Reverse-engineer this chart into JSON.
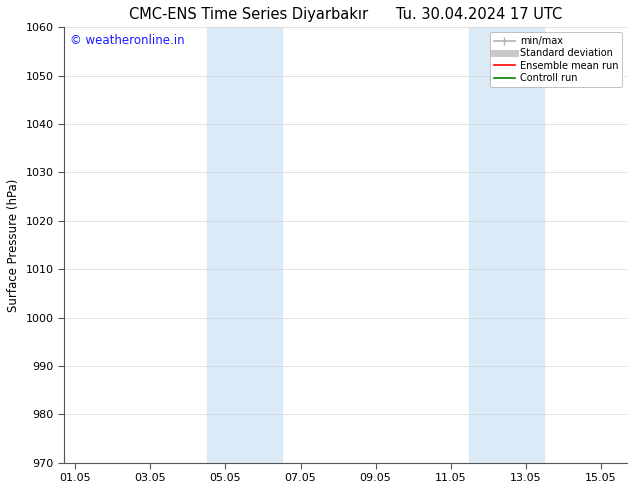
{
  "title": "CMC-ENS Time Series Diyarbakır",
  "title_right": "Tu. 30.04.2024 17 UTC",
  "ylabel": "Surface Pressure (hPa)",
  "ylim": [
    970,
    1060
  ],
  "yticks": [
    970,
    980,
    990,
    1000,
    1010,
    1020,
    1030,
    1040,
    1050,
    1060
  ],
  "xtick_labels": [
    "01.05",
    "03.05",
    "05.05",
    "07.05",
    "09.05",
    "11.05",
    "13.05",
    "15.05"
  ],
  "xtick_positions": [
    0,
    2,
    4,
    6,
    8,
    10,
    12,
    14
  ],
  "xlim": [
    -0.3,
    14.7
  ],
  "shaded_bands": [
    {
      "xmin": 3.5,
      "xmax": 5.5
    },
    {
      "xmin": 10.5,
      "xmax": 12.5
    }
  ],
  "shaded_color": "#dbeaf7",
  "watermark_text": "© weatheronline.in",
  "watermark_color": "#1a1aff",
  "watermark_fontsize": 8.5,
  "legend_entries": [
    {
      "label": "min/max",
      "color": "#b0b0b0",
      "lw": 1.2
    },
    {
      "label": "Standard deviation",
      "color": "#c8c8c8",
      "lw": 5
    },
    {
      "label": "Ensemble mean run",
      "color": "#ff0000",
      "lw": 1.2
    },
    {
      "label": "Controll run",
      "color": "#008000",
      "lw": 1.2
    }
  ],
  "background_color": "#ffffff",
  "spine_color": "#555555",
  "tick_color": "#555555",
  "title_fontsize": 10.5,
  "axis_label_fontsize": 8.5,
  "tick_fontsize": 8
}
